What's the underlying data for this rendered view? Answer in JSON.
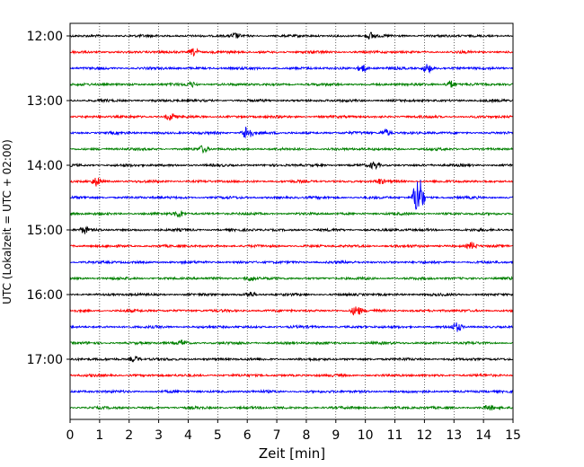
{
  "chart_data": {
    "type": "line",
    "title": "",
    "xlabel": "Zeit  [min]",
    "ylabel": "UTC (Lokalzeit = UTC + 02:00)",
    "xlim": [
      0,
      15
    ],
    "x_ticks": [
      "0",
      "1",
      "2",
      "3",
      "4",
      "5",
      "6",
      "7",
      "8",
      "9",
      "10",
      "11",
      "12",
      "13",
      "14",
      "15"
    ],
    "y_ticks": [
      "12:00",
      "13:00",
      "14:00",
      "15:00",
      "16:00",
      "17:00"
    ],
    "grid": "vertical dotted at each minute",
    "trace_interval_minutes": 15,
    "trace_start": "12:00",
    "trace_colors": [
      "#000000",
      "#ff0000",
      "#0000ff",
      "#008000"
    ],
    "traces": [
      {
        "start": "12:00",
        "color": "#000000",
        "events": [
          {
            "minute": 5.6,
            "amplitude": 3
          },
          {
            "minute": 10.2,
            "amplitude": 4
          }
        ]
      },
      {
        "start": "12:15",
        "color": "#ff0000",
        "events": [
          {
            "minute": 4.2,
            "amplitude": 4
          }
        ]
      },
      {
        "start": "12:30",
        "color": "#0000ff",
        "events": [
          {
            "minute": 9.9,
            "amplitude": 4
          },
          {
            "minute": 12.1,
            "amplitude": 5
          }
        ]
      },
      {
        "start": "12:45",
        "color": "#008000",
        "events": [
          {
            "minute": 4.1,
            "amplitude": 3
          },
          {
            "minute": 12.9,
            "amplitude": 4
          }
        ]
      },
      {
        "start": "13:00",
        "color": "#000000",
        "events": []
      },
      {
        "start": "13:15",
        "color": "#ff0000",
        "events": [
          {
            "minute": 3.4,
            "amplitude": 4
          }
        ]
      },
      {
        "start": "13:30",
        "color": "#0000ff",
        "events": [
          {
            "minute": 6.0,
            "amplitude": 9
          },
          {
            "minute": 10.7,
            "amplitude": 4
          }
        ]
      },
      {
        "start": "13:45",
        "color": "#008000",
        "events": [
          {
            "minute": 4.5,
            "amplitude": 4
          }
        ]
      },
      {
        "start": "14:00",
        "color": "#000000",
        "events": [
          {
            "minute": 10.3,
            "amplitude": 4
          }
        ]
      },
      {
        "start": "14:15",
        "color": "#ff0000",
        "events": [
          {
            "minute": 0.9,
            "amplitude": 5
          },
          {
            "minute": 10.5,
            "amplitude": 3
          }
        ]
      },
      {
        "start": "14:30",
        "color": "#0000ff",
        "events": [
          {
            "minute": 11.8,
            "amplitude": 28
          }
        ]
      },
      {
        "start": "14:45",
        "color": "#008000",
        "events": [
          {
            "minute": 3.7,
            "amplitude": 4
          }
        ]
      },
      {
        "start": "15:00",
        "color": "#000000",
        "events": [
          {
            "minute": 0.5,
            "amplitude": 4
          }
        ]
      },
      {
        "start": "15:15",
        "color": "#ff0000",
        "events": [
          {
            "minute": 13.6,
            "amplitude": 4
          }
        ]
      },
      {
        "start": "15:30",
        "color": "#0000ff",
        "events": []
      },
      {
        "start": "15:45",
        "color": "#008000",
        "events": [
          {
            "minute": 6.1,
            "amplitude": 3
          }
        ]
      },
      {
        "start": "16:00",
        "color": "#000000",
        "events": [
          {
            "minute": 6.1,
            "amplitude": 3
          }
        ]
      },
      {
        "start": "16:15",
        "color": "#ff0000",
        "events": [
          {
            "minute": 9.7,
            "amplitude": 6
          }
        ]
      },
      {
        "start": "16:30",
        "color": "#0000ff",
        "events": [
          {
            "minute": 13.1,
            "amplitude": 5
          }
        ]
      },
      {
        "start": "16:45",
        "color": "#008000",
        "events": [
          {
            "minute": 3.8,
            "amplitude": 3
          }
        ]
      },
      {
        "start": "17:00",
        "color": "#000000",
        "events": [
          {
            "minute": 2.2,
            "amplitude": 3
          }
        ]
      },
      {
        "start": "17:15",
        "color": "#ff0000",
        "events": []
      },
      {
        "start": "17:30",
        "color": "#0000ff",
        "events": []
      },
      {
        "start": "17:45",
        "color": "#008000",
        "events": [
          {
            "minute": 14.2,
            "amplitude": 3
          }
        ]
      }
    ]
  }
}
